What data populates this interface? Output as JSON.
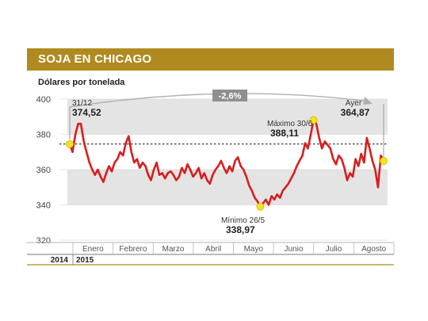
{
  "header": {
    "title": "SOJA EN CHICAGO"
  },
  "chart_data": {
    "type": "line",
    "title": "SOJA EN CHICAGO",
    "ylabel": "Dólares por tonelada",
    "ylim": [
      320,
      400
    ],
    "yticks": [
      "400",
      "380",
      "360",
      "340",
      "320"
    ],
    "grid": "alternating bands",
    "months": [
      "Enero",
      "Febrero",
      "Marzo",
      "Abril",
      "Mayo",
      "Junio",
      "Julio",
      "Agosto"
    ],
    "years": [
      "2014",
      "2015"
    ],
    "reference_value": 374.52,
    "change_label": "-2,6%",
    "colors": {
      "line": "#d71e1e",
      "accent": "#b08a1e",
      "marker": "#f2e51a",
      "band": "#e4e4e4"
    },
    "series": [
      {
        "values": [
          374.5,
          370,
          380,
          386,
          386,
          376,
          370,
          364,
          360,
          357,
          360,
          356,
          353,
          358,
          362,
          359,
          364,
          366,
          370,
          368,
          375,
          379,
          370,
          364,
          366,
          361,
          364,
          362,
          357,
          354,
          360,
          364,
          357,
          358,
          355,
          358,
          359,
          357,
          354,
          356,
          361,
          358,
          363,
          360,
          356,
          358,
          361,
          355,
          358,
          354,
          352,
          357,
          360,
          362,
          365,
          361,
          358,
          362,
          359,
          365,
          367,
          362,
          360,
          356,
          351,
          348,
          344,
          342,
          339,
          341,
          343,
          340,
          345,
          343,
          346,
          344,
          348,
          350,
          352,
          355,
          358,
          362,
          365,
          368,
          375,
          372,
          380,
          388.1,
          386,
          378,
          372,
          376,
          374,
          372,
          366,
          363,
          368,
          366,
          361,
          354,
          358,
          356,
          366,
          362,
          369,
          364,
          378,
          372,
          365,
          360,
          350,
          368,
          364.9
        ]
      }
    ],
    "annotations": [
      {
        "label": "31/12",
        "value": "374,52"
      },
      {
        "label": "Máximo 30/6",
        "value": "388,11"
      },
      {
        "label": "Mínimo 26/5",
        "value": "338,97"
      },
      {
        "label": "Ayer",
        "value": "364,87"
      }
    ]
  }
}
